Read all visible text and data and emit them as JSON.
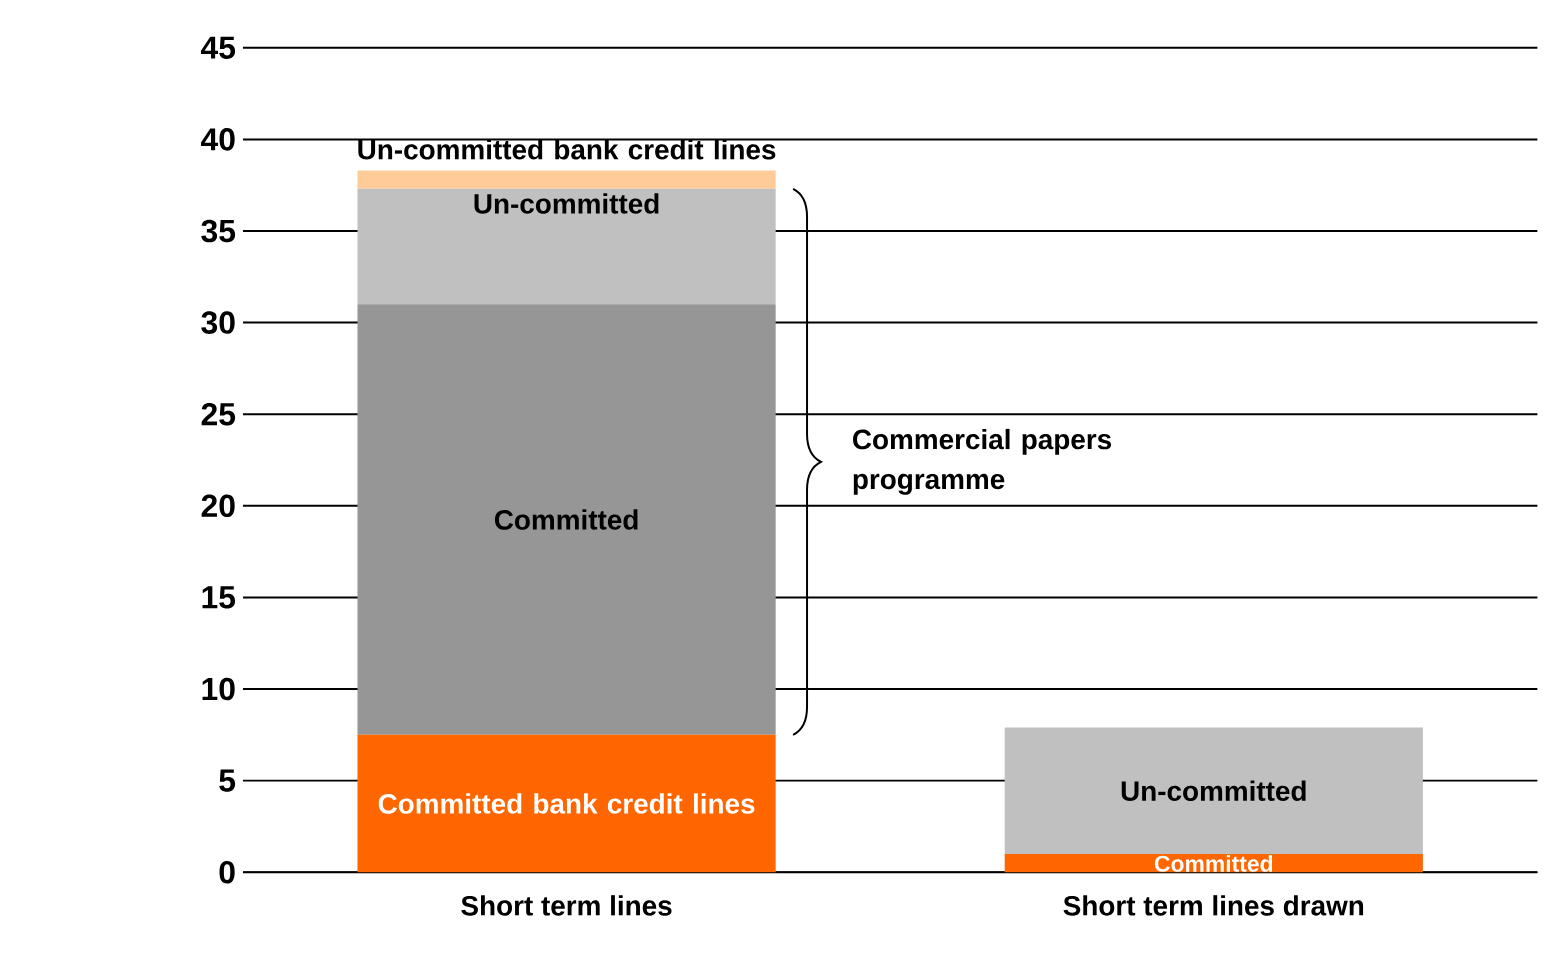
{
  "chart_data": {
    "type": "bar",
    "stacked": true,
    "categories": [
      "Short term lines",
      "Short term lines drawn"
    ],
    "series": [
      {
        "color": "#ff6600",
        "values": [
          7.5,
          1
        ]
      },
      {
        "color": "#969696",
        "values": [
          23.5,
          null
        ]
      },
      {
        "color": "#c0c0c0",
        "values": [
          6.3,
          6.9
        ]
      },
      {
        "color": "#ffcc99",
        "values": [
          1,
          null
        ]
      }
    ],
    "ylim": [
      0,
      45
    ],
    "yticks": [
      0,
      5,
      10,
      15,
      20,
      25,
      30,
      35,
      40,
      45
    ],
    "grid": "y",
    "annotations": [
      "Un-committed bank credit lines",
      "Un-committed",
      "Committed",
      "Committed bank credit lines",
      "Un-committed",
      "Committed",
      "Commercial papers programme"
    ]
  }
}
